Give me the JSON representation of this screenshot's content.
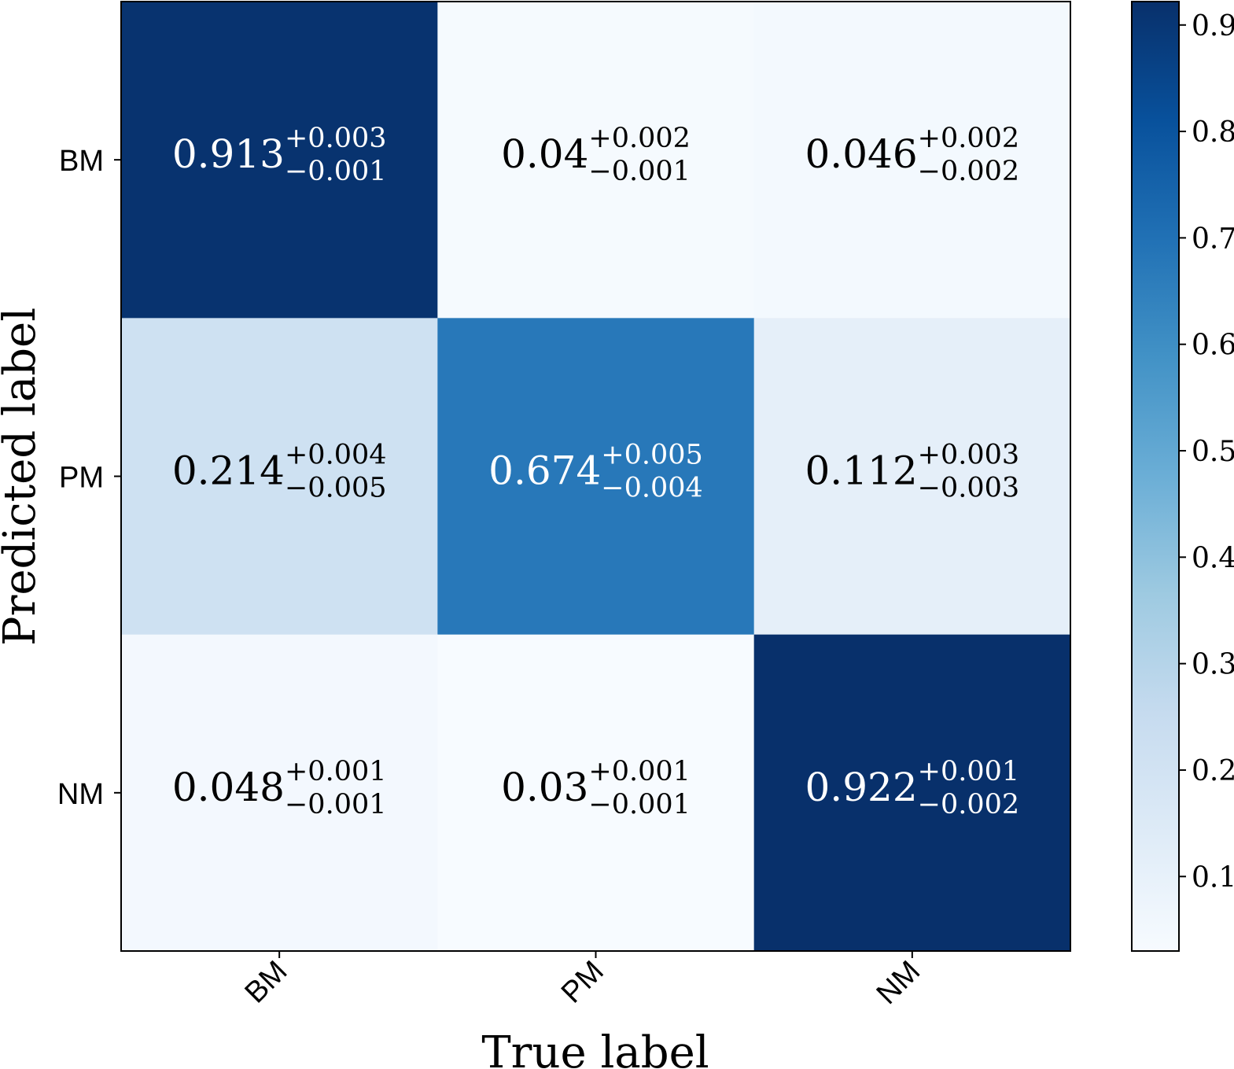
{
  "chart_data": {
    "type": "heatmap",
    "title": "",
    "xlabel": "True label",
    "ylabel": "Predicted label",
    "x_categories": [
      "BM",
      "PM",
      "NM"
    ],
    "y_categories": [
      "BM",
      "PM",
      "NM"
    ],
    "values": [
      [
        0.913,
        0.04,
        0.046
      ],
      [
        0.214,
        0.674,
        0.112
      ],
      [
        0.048,
        0.03,
        0.922
      ]
    ],
    "cells": [
      [
        {
          "value": "0.913",
          "plus": "+0.003",
          "minus": "−0.001"
        },
        {
          "value": "0.04",
          "plus": "+0.002",
          "minus": "−0.001"
        },
        {
          "value": "0.046",
          "plus": "+0.002",
          "minus": "−0.002"
        }
      ],
      [
        {
          "value": "0.214",
          "plus": "+0.004",
          "minus": "−0.005"
        },
        {
          "value": "0.674",
          "plus": "+0.005",
          "minus": "−0.004"
        },
        {
          "value": "0.112",
          "plus": "+0.003",
          "minus": "−0.003"
        }
      ],
      [
        {
          "value": "0.048",
          "plus": "+0.001",
          "minus": "−0.001"
        },
        {
          "value": "0.03",
          "plus": "+0.001",
          "minus": "−0.001"
        },
        {
          "value": "0.922",
          "plus": "+0.001",
          "minus": "−0.002"
        }
      ]
    ],
    "colormap": "Blues",
    "colorbar": {
      "range": [
        0.03,
        0.922
      ],
      "ticks": [
        0.1,
        0.2,
        0.3,
        0.4,
        0.5,
        0.6,
        0.7,
        0.8,
        0.9
      ],
      "tick_labels": [
        "0.1",
        "0.2",
        "0.3",
        "0.4",
        "0.5",
        "0.6",
        "0.7",
        "0.8",
        "0.9"
      ]
    },
    "colors": {
      "blues_stops": [
        "#f7fbff",
        "#deebf7",
        "#c6dbef",
        "#9ecae1",
        "#6baed6",
        "#4292c6",
        "#2171b5",
        "#08519c",
        "#08306b"
      ],
      "text_dark": "#000000",
      "text_light": "#ffffff"
    }
  }
}
